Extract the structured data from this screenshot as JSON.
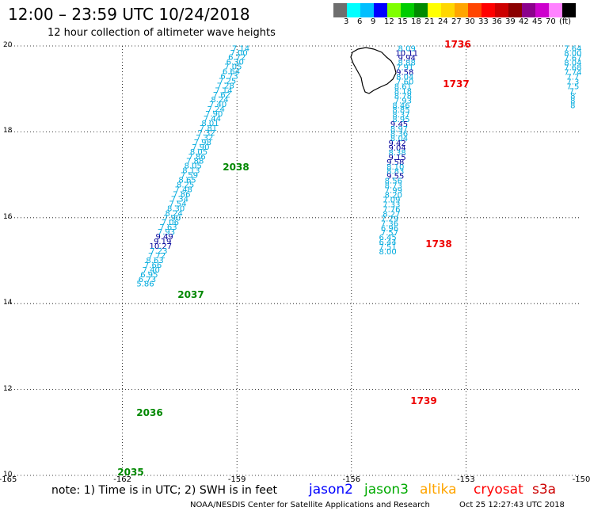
{
  "header": {
    "title": "12:00 – 23:59 UTC 10/24/2018",
    "subtitle": "12 hour collection of altimeter wave heights"
  },
  "colorscale": {
    "colors": [
      "#6e6e6e",
      "#00ffff",
      "#00bfff",
      "#0000ff",
      "#7fff00",
      "#00cd00",
      "#008b00",
      "#ffff00",
      "#ffd700",
      "#ffa500",
      "#ff4500",
      "#ff0000",
      "#cd0000",
      "#8b0000",
      "#8b008b",
      "#cd00cd",
      "#ff82ff",
      "#000000"
    ],
    "labels": [
      "3",
      "6",
      "9",
      "12",
      "15",
      "18",
      "21",
      "24",
      "27",
      "30",
      "33",
      "36",
      "39",
      "42",
      "45",
      "70",
      "(ft)"
    ]
  },
  "axes": {
    "lat_ticks": [
      "20",
      "18",
      "16",
      "14",
      "12",
      "10"
    ],
    "lon_ticks": [
      "-165",
      "-162",
      "-159",
      "-156",
      "-153",
      "-150"
    ]
  },
  "colors": {
    "track_light": "#00aadd",
    "track_dark": "#00009a",
    "label_green": "#008800",
    "label_red": "#ee0000",
    "grid": "#000000"
  },
  "chart_data": {
    "type": "scatter",
    "bounds": {
      "lon": [
        -165,
        -150
      ],
      "lat": [
        10,
        20
      ]
    },
    "tracks": [
      {
        "name": "track-west",
        "points": [
          {
            "lon": -158.9,
            "lat": 19.95,
            "v": "7.14"
          },
          {
            "lon": -158.95,
            "lat": 19.85,
            "v": "7.00"
          },
          {
            "lon": -159.0,
            "lat": 19.75,
            "v": "6.72"
          },
          {
            "lon": -159.05,
            "lat": 19.64,
            "v": "6.30"
          },
          {
            "lon": -159.1,
            "lat": 19.53,
            "v": "7.05"
          },
          {
            "lon": -159.15,
            "lat": 19.42,
            "v": "6.64"
          },
          {
            "lon": -159.2,
            "lat": 19.31,
            "v": "6.73"
          },
          {
            "lon": -159.25,
            "lat": 19.2,
            "v": "7.25"
          },
          {
            "lon": -159.3,
            "lat": 19.09,
            "v": "7.28"
          },
          {
            "lon": -159.35,
            "lat": 18.98,
            "v": "7.14"
          },
          {
            "lon": -159.4,
            "lat": 18.87,
            "v": "7.62"
          },
          {
            "lon": -159.45,
            "lat": 18.76,
            "v": "8.24"
          },
          {
            "lon": -159.5,
            "lat": 18.65,
            "v": "7.40"
          },
          {
            "lon": -159.55,
            "lat": 18.54,
            "v": "7.24"
          },
          {
            "lon": -159.6,
            "lat": 18.43,
            "v": "7.90"
          },
          {
            "lon": -159.65,
            "lat": 18.32,
            "v": "7.44"
          },
          {
            "lon": -159.7,
            "lat": 18.21,
            "v": "8.01"
          },
          {
            "lon": -159.75,
            "lat": 18.1,
            "v": "7.81"
          },
          {
            "lon": -159.8,
            "lat": 17.99,
            "v": "7.32"
          },
          {
            "lon": -159.85,
            "lat": 17.88,
            "v": "7.32"
          },
          {
            "lon": -159.9,
            "lat": 17.77,
            "v": "7.98"
          },
          {
            "lon": -159.95,
            "lat": 17.66,
            "v": "7.90"
          },
          {
            "lon": -160.0,
            "lat": 17.55,
            "v": "8.05"
          },
          {
            "lon": -160.05,
            "lat": 17.44,
            "v": "7.86"
          },
          {
            "lon": -160.1,
            "lat": 17.33,
            "v": "7.88"
          },
          {
            "lon": -160.15,
            "lat": 17.22,
            "v": "8.05"
          },
          {
            "lon": -160.2,
            "lat": 17.11,
            "v": "8.13"
          },
          {
            "lon": -160.25,
            "lat": 17.0,
            "v": "7.59"
          },
          {
            "lon": -160.3,
            "lat": 16.89,
            "v": "8.65"
          },
          {
            "lon": -160.35,
            "lat": 16.78,
            "v": "8.25"
          },
          {
            "lon": -160.4,
            "lat": 16.67,
            "v": "7.48"
          },
          {
            "lon": -160.45,
            "lat": 16.56,
            "v": "7.86"
          },
          {
            "lon": -160.5,
            "lat": 16.45,
            "v": "7.34"
          },
          {
            "lon": -160.55,
            "lat": 16.34,
            "v": "7.54"
          },
          {
            "lon": -160.6,
            "lat": 16.23,
            "v": "8.30"
          },
          {
            "lon": -160.65,
            "lat": 16.12,
            "v": "8.24"
          },
          {
            "lon": -160.7,
            "lat": 16.01,
            "v": "7.90"
          },
          {
            "lon": -160.75,
            "lat": 15.9,
            "v": "7.06"
          },
          {
            "lon": -160.8,
            "lat": 15.79,
            "v": "7.63"
          },
          {
            "lon": -160.85,
            "lat": 15.68,
            "v": "7.93"
          },
          {
            "lon": -160.9,
            "lat": 15.57,
            "v": "9.49"
          },
          {
            "lon": -160.95,
            "lat": 15.46,
            "v": "9.19"
          },
          {
            "lon": -161.0,
            "lat": 15.35,
            "v": "10.27"
          },
          {
            "lon": -161.05,
            "lat": 15.24,
            "v": "7.23"
          },
          {
            "lon": -161.1,
            "lat": 15.13,
            "v": "7.72"
          },
          {
            "lon": -161.15,
            "lat": 15.02,
            "v": "8.63"
          },
          {
            "lon": -161.2,
            "lat": 14.91,
            "v": "7.66"
          },
          {
            "lon": -161.25,
            "lat": 14.8,
            "v": "7.40"
          },
          {
            "lon": -161.3,
            "lat": 14.69,
            "v": "6.95"
          },
          {
            "lon": -161.35,
            "lat": 14.58,
            "v": "6.73"
          },
          {
            "lon": -161.4,
            "lat": 14.47,
            "v": "5.86"
          }
        ]
      },
      {
        "name": "track-east",
        "points": [
          {
            "lon": -154.55,
            "lat": 19.95,
            "v": "8.09"
          },
          {
            "lon": -154.55,
            "lat": 19.84,
            "v": "10.11"
          },
          {
            "lon": -154.55,
            "lat": 19.73,
            "v": "9.94"
          },
          {
            "lon": -154.55,
            "lat": 19.62,
            "v": "8.88"
          },
          {
            "lon": -154.6,
            "lat": 19.51,
            "v": "7.91"
          },
          {
            "lon": -154.6,
            "lat": 19.4,
            "v": "9.58"
          },
          {
            "lon": -154.6,
            "lat": 19.29,
            "v": "8.04"
          },
          {
            "lon": -154.6,
            "lat": 19.18,
            "v": "7.60"
          },
          {
            "lon": -154.65,
            "lat": 19.07,
            "v": "8.61"
          },
          {
            "lon": -154.65,
            "lat": 18.96,
            "v": "8.18"
          },
          {
            "lon": -154.65,
            "lat": 18.85,
            "v": "8.78"
          },
          {
            "lon": -154.65,
            "lat": 18.74,
            "v": "7.93"
          },
          {
            "lon": -154.7,
            "lat": 18.63,
            "v": "8.46"
          },
          {
            "lon": -154.7,
            "lat": 18.52,
            "v": "8.85"
          },
          {
            "lon": -154.7,
            "lat": 18.41,
            "v": "8.37"
          },
          {
            "lon": -154.7,
            "lat": 18.3,
            "v": "8.95"
          },
          {
            "lon": -154.75,
            "lat": 18.19,
            "v": "9.45"
          },
          {
            "lon": -154.75,
            "lat": 18.08,
            "v": "8.97"
          },
          {
            "lon": -154.75,
            "lat": 17.97,
            "v": "8.36"
          },
          {
            "lon": -154.75,
            "lat": 17.86,
            "v": "8.04"
          },
          {
            "lon": -154.8,
            "lat": 17.75,
            "v": "9.42"
          },
          {
            "lon": -154.8,
            "lat": 17.64,
            "v": "9.04"
          },
          {
            "lon": -154.8,
            "lat": 17.53,
            "v": "8.38"
          },
          {
            "lon": -154.8,
            "lat": 17.42,
            "v": "9.15"
          },
          {
            "lon": -154.85,
            "lat": 17.31,
            "v": "9.58"
          },
          {
            "lon": -154.85,
            "lat": 17.2,
            "v": "8.10"
          },
          {
            "lon": -154.85,
            "lat": 17.09,
            "v": "8.83"
          },
          {
            "lon": -154.85,
            "lat": 16.98,
            "v": "9.55"
          },
          {
            "lon": -154.9,
            "lat": 16.87,
            "v": "8.56"
          },
          {
            "lon": -154.9,
            "lat": 16.76,
            "v": "8.73"
          },
          {
            "lon": -154.9,
            "lat": 16.65,
            "v": "7.99"
          },
          {
            "lon": -154.9,
            "lat": 16.54,
            "v": "8.20"
          },
          {
            "lon": -154.95,
            "lat": 16.43,
            "v": "7.09"
          },
          {
            "lon": -154.95,
            "lat": 16.32,
            "v": "7.33"
          },
          {
            "lon": -154.95,
            "lat": 16.21,
            "v": "7.76"
          },
          {
            "lon": -154.95,
            "lat": 16.1,
            "v": "8.27"
          },
          {
            "lon": -155.0,
            "lat": 15.99,
            "v": "7.29"
          },
          {
            "lon": -155.0,
            "lat": 15.88,
            "v": "7.36"
          },
          {
            "lon": -155.0,
            "lat": 15.77,
            "v": "6.96"
          },
          {
            "lon": -155.0,
            "lat": 15.66,
            "v": "7.57"
          },
          {
            "lon": -155.05,
            "lat": 15.55,
            "v": "6.45"
          },
          {
            "lon": -155.05,
            "lat": 15.44,
            "v": "6.44"
          },
          {
            "lon": -155.05,
            "lat": 15.33,
            "v": "7.51"
          },
          {
            "lon": -155.05,
            "lat": 15.22,
            "v": "8.00"
          }
        ]
      },
      {
        "name": "track-far-east",
        "points": [
          {
            "lon": -150.2,
            "lat": 19.95,
            "v": "7.64"
          },
          {
            "lon": -150.2,
            "lat": 19.84,
            "v": "8.00"
          },
          {
            "lon": -150.2,
            "lat": 19.73,
            "v": "7.67"
          },
          {
            "lon": -150.2,
            "lat": 19.62,
            "v": "8.04"
          },
          {
            "lon": -150.2,
            "lat": 19.51,
            "v": "7.68"
          },
          {
            "lon": -150.2,
            "lat": 19.4,
            "v": "7.74"
          },
          {
            "lon": -150.2,
            "lat": 19.29,
            "v": "7.7"
          },
          {
            "lon": -150.2,
            "lat": 19.18,
            "v": "7.3"
          },
          {
            "lon": -150.2,
            "lat": 19.07,
            "v": "7.5"
          },
          {
            "lon": -150.2,
            "lat": 18.96,
            "v": "7."
          },
          {
            "lon": -150.2,
            "lat": 18.85,
            "v": "8"
          },
          {
            "lon": -150.2,
            "lat": 18.74,
            "v": "8"
          },
          {
            "lon": -150.2,
            "lat": 18.63,
            "v": "8"
          }
        ]
      }
    ],
    "time_labels": [
      {
        "text": "2038",
        "color": "green"
      },
      {
        "text": "2037",
        "color": "green"
      },
      {
        "text": "2036",
        "color": "green"
      },
      {
        "text": "2035",
        "color": "green"
      },
      {
        "text": "1736",
        "color": "red"
      },
      {
        "text": "1737",
        "color": "red"
      },
      {
        "text": "1738",
        "color": "red"
      },
      {
        "text": "1739",
        "color": "red"
      }
    ]
  },
  "footer": {
    "note": "note:  1) Time is in UTC;  2) SWH is in feet",
    "legend": [
      {
        "text": "jason2",
        "color": "#0000ff"
      },
      {
        "text": "jason3",
        "color": "#00aa00"
      },
      {
        "text": "altika",
        "color": "#ffa500"
      },
      {
        "text": "cryosat",
        "color": "#ff0000"
      },
      {
        "text": "s3a",
        "color": "#cc0000"
      }
    ],
    "credit": "NOAA/NESDIS Center for Satellite Applications and Research",
    "timestamp": "Oct 25 12:27:43 UTC 2018"
  }
}
